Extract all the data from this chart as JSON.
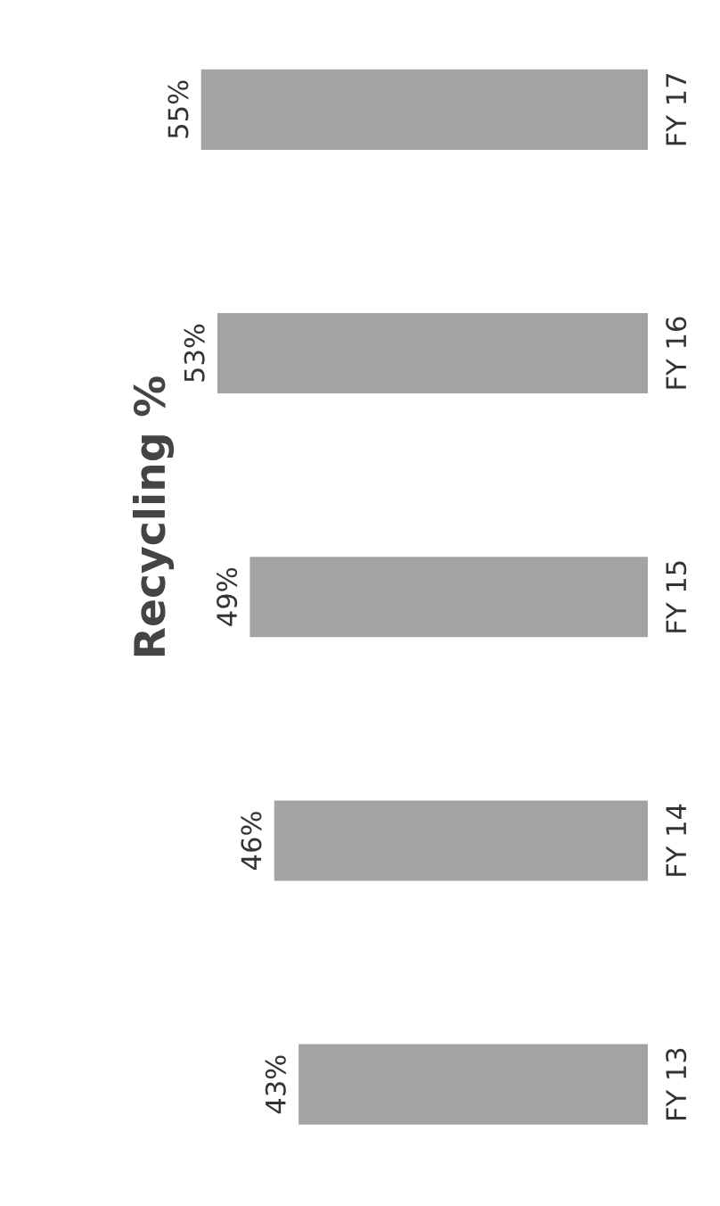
{
  "chart_data": {
    "type": "bar",
    "title": "Recycling %",
    "orientation": "horizontal",
    "categories": [
      "FY 17",
      "FY 16",
      "FY 15",
      "FY 14",
      "FY 13"
    ],
    "values": [
      55,
      53,
      49,
      46,
      43
    ],
    "value_labels": [
      "55%",
      "53%",
      "49%",
      "46%",
      "43%"
    ],
    "color": "#a3a3a3",
    "tick_labels": "y",
    "grid": false
  }
}
